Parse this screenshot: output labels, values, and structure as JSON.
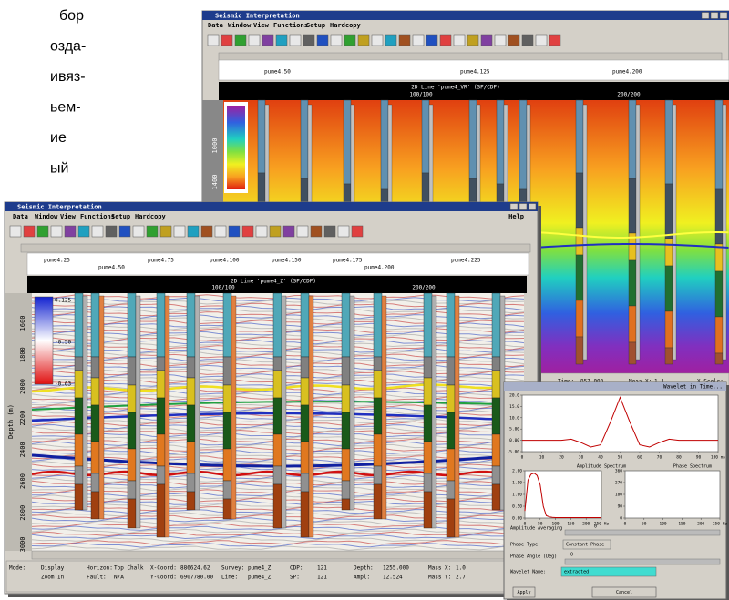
{
  "side_text": [
    "бор",
    "озда-",
    "ивяз-",
    "ьем-",
    "ие",
    "ый"
  ],
  "back_window": {
    "title": "Seismic Interpretation",
    "menu": [
      "Data",
      "Window",
      "View",
      "Functions",
      "Setup",
      "Hardcopy"
    ],
    "well_labels": [
      "pume4.50",
      "pume4.125",
      "pume4.200"
    ],
    "line_header": "2D Line 'pume4_VR' (SP/CDP)",
    "cdp_labels": [
      "100/100",
      "200/200"
    ],
    "axis_ticks": [
      "1000",
      "1400"
    ],
    "status": [
      {
        "label": "Time:",
        "value": "857.000"
      },
      {
        "label": "Mass X:",
        "value": "1.1"
      },
      {
        "label": "X-Scale:"
      }
    ]
  },
  "front_window": {
    "title": "Seismic Interpretation",
    "menu": [
      "Data",
      "Window",
      "View",
      "Functions",
      "Setup",
      "Hardcopy"
    ],
    "help": "Help",
    "well_labels": [
      "pume4.25",
      "pume4.50",
      "pume4.75",
      "pume4.100",
      "pume4.150",
      "pume4.175",
      "pume4.200",
      "pume4.225"
    ],
    "line_header": "2D Line 'pume4_Z' (SP/CDP)",
    "cdp_labels": [
      "100/100",
      "200/200"
    ],
    "axis_title": "Depth (m)",
    "axis_ticks": [
      "1600",
      "1800",
      "2000",
      "2200",
      "2400",
      "2600",
      "2800",
      "3000"
    ],
    "scale_labels": [
      "0.125",
      "-0.50",
      "-0.63"
    ],
    "status": [
      {
        "label": "Mode:",
        "value": "Display"
      },
      {
        "label": "Horizon:",
        "value": "Top Chalk"
      },
      {
        "label": "X-Coord:",
        "value": "886624.62"
      },
      {
        "label": "Survey:",
        "value": "pume4_Z"
      },
      {
        "label": "CDP:",
        "value": "121"
      },
      {
        "label": "Depth:",
        "value": "1255.000"
      },
      {
        "label": "Mass X:",
        "value": "1.0"
      }
    ],
    "status_row2": [
      {
        "value": "Zoom In"
      },
      {
        "label": "Fault:",
        "value": "N/A"
      },
      {
        "label": "Y-Coord:",
        "value": "6907780.00"
      },
      {
        "label": "Line:",
        "value": "pume4_Z"
      },
      {
        "label": "SP:",
        "value": "121"
      },
      {
        "label": "Ampl:",
        "value": "12.524"
      },
      {
        "label": "Mass Y:",
        "value": "2.7"
      }
    ]
  },
  "wavelet_dialog": {
    "title": "Wavelet in Time...",
    "time_plot": {
      "type": "line",
      "color": "#c00000",
      "x": [
        0,
        5,
        10,
        15,
        20,
        25,
        30,
        35,
        40,
        45,
        50,
        55,
        60,
        65,
        70,
        75,
        80,
        85,
        90,
        95,
        100
      ],
      "values": [
        0,
        0,
        0,
        0,
        0,
        0.5,
        -1,
        -3,
        -2,
        8,
        19,
        8,
        -2,
        -3,
        -1,
        0.5,
        0,
        0,
        0,
        0,
        0
      ],
      "xlim": [
        0,
        100
      ],
      "ylim": [
        -5,
        20
      ],
      "xticks": [
        0,
        10,
        20,
        30,
        40,
        50,
        60,
        70,
        80,
        90,
        {
          "value": 100,
          "label": "100 ms"
        }
      ],
      "yticks": [
        {
          "value": -5,
          "label": "-5.00"
        },
        {
          "value": 0,
          "label": "0.00"
        },
        {
          "value": 5,
          "label": "5.00"
        },
        {
          "value": 10,
          "label": "10.0"
        },
        {
          "value": 15,
          "label": "15.0"
        },
        {
          "value": 20,
          "label": "20.0"
        }
      ]
    },
    "amplitude_plot": {
      "type": "line",
      "title": "Amplitude Spectrum",
      "color": "#c00000",
      "x": [
        0,
        10,
        20,
        30,
        40,
        50,
        60,
        70,
        80,
        90,
        100,
        110,
        120,
        130,
        140,
        150,
        160,
        170,
        180,
        190,
        200,
        210,
        220,
        230,
        240,
        250
      ],
      "values": [
        0.3,
        1.6,
        1.85,
        1.9,
        1.8,
        1.4,
        0.5,
        0.1,
        0.05,
        0.03,
        0.02,
        0.02,
        0.02,
        0.02,
        0.02,
        0.02,
        0.02,
        0.02,
        0.02,
        0.02,
        0.02,
        0.02,
        0.02,
        0.02,
        0.02,
        0.02
      ],
      "xlim": [
        0,
        250
      ],
      "ylim": [
        0,
        2
      ],
      "xticks": [
        0,
        50,
        100,
        150,
        200,
        {
          "value": 250,
          "label": "250 Hz"
        }
      ],
      "yticks": [
        {
          "value": 0,
          "label": "0.00"
        },
        {
          "value": 0.5,
          "label": "0.50"
        },
        {
          "value": 1,
          "label": "1.00"
        },
        {
          "value": 1.5,
          "label": "1.50"
        },
        {
          "value": 2,
          "label": "2.00"
        }
      ]
    },
    "phase_plot": {
      "type": "line",
      "title": "Phase Spectrum",
      "xlim": [
        0,
        250
      ],
      "ylim": [
        0,
        360
      ],
      "xticks": [
        0,
        50,
        100,
        150,
        200,
        {
          "value": 250,
          "label": "250 Hz"
        }
      ],
      "yticks": [
        0,
        90,
        180,
        270,
        360
      ]
    },
    "averaging_label": "Amplitude Averaging",
    "averaging_value": "0",
    "phase_type_label": "Phase Type:",
    "phase_type_value": "Constant Phase",
    "phase_angle_label": "Phase Angle (Deg)",
    "phase_angle_value": "0",
    "name_label": "Wavelet Name:",
    "name_value": "extracted",
    "apply": "Apply",
    "cancel": "Cancel"
  }
}
